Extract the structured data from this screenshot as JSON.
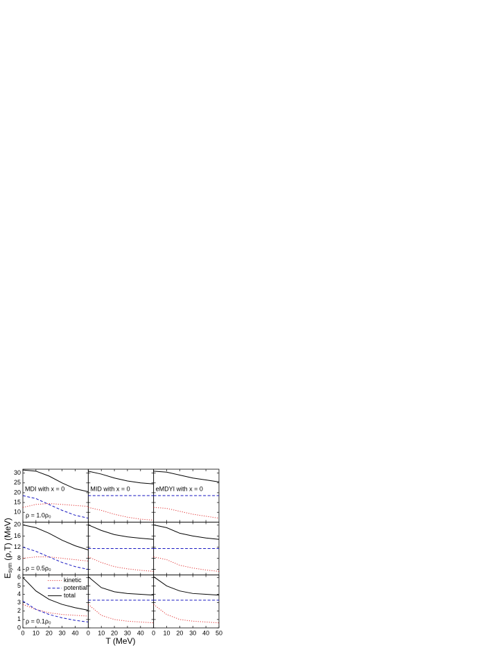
{
  "figure": {
    "xlabel": "T (MeV)",
    "ylabel": {
      "main": "E",
      "sub": "sym",
      "rest": " (ρ,T) (MeV)"
    }
  },
  "chart_data": [
    {
      "type": "line",
      "title": "MDI with x = 0",
      "annotation": "ρ = 1.0ρ₀",
      "x": [
        0,
        10,
        20,
        30,
        40,
        50
      ],
      "xlim": [
        0,
        50
      ],
      "xticks": [
        0,
        10,
        20,
        30,
        40
      ],
      "show_xtick_labels": false,
      "ylim": [
        5,
        32
      ],
      "yticks": [
        10,
        15,
        20,
        25,
        30
      ],
      "show_ytick_labels": true,
      "series": [
        {
          "name": "kinetic",
          "color": "#e03030",
          "style": "dotted",
          "values": [
            12.5,
            14,
            14.5,
            14,
            13.5,
            13
          ]
        },
        {
          "name": "potential",
          "color": "#1515c0",
          "style": "dashed",
          "values": [
            18.5,
            17,
            14,
            11,
            8.5,
            7
          ]
        },
        {
          "name": "total",
          "color": "#000000",
          "style": "solid",
          "values": [
            31.6,
            31,
            28.5,
            25,
            22,
            20.5
          ]
        }
      ]
    },
    {
      "type": "line",
      "title": "MID with x = 0",
      "x": [
        0,
        10,
        20,
        30,
        40,
        50
      ],
      "xlim": [
        0,
        50
      ],
      "xticks": [
        0,
        10,
        20,
        30,
        40
      ],
      "show_xtick_labels": false,
      "ylim": [
        5,
        32
      ],
      "yticks": [
        10,
        15,
        20,
        25,
        30
      ],
      "show_ytick_labels": false,
      "series": [
        {
          "name": "kinetic",
          "color": "#e03030",
          "style": "dotted",
          "values": [
            12.5,
            11,
            9,
            7.5,
            6.5,
            6
          ]
        },
        {
          "name": "potential",
          "color": "#1515c0",
          "style": "dashed",
          "values": [
            18.5,
            18.5,
            18.5,
            18.5,
            18.5,
            18.5
          ]
        },
        {
          "name": "total",
          "color": "#000000",
          "style": "solid",
          "values": [
            31,
            29.5,
            27.5,
            26,
            25,
            24.5
          ]
        }
      ]
    },
    {
      "type": "line",
      "title": "eMDYI with x = 0",
      "x": [
        0,
        10,
        20,
        30,
        40,
        50
      ],
      "xlim": [
        0,
        50
      ],
      "xticks": [
        0,
        10,
        20,
        30,
        40
      ],
      "show_xtick_labels": false,
      "ylim": [
        5,
        32
      ],
      "yticks": [
        10,
        15,
        20,
        25,
        30
      ],
      "show_ytick_labels": false,
      "series": [
        {
          "name": "kinetic",
          "color": "#e03030",
          "style": "dotted",
          "values": [
            12.5,
            12,
            10.5,
            9,
            8,
            7
          ]
        },
        {
          "name": "potential",
          "color": "#1515c0",
          "style": "dashed",
          "values": [
            18.5,
            18.5,
            18.5,
            18.5,
            18.5,
            18.5
          ]
        },
        {
          "name": "total",
          "color": "#000000",
          "style": "solid",
          "values": [
            31,
            30.5,
            29,
            27.5,
            26.5,
            25.5
          ]
        }
      ]
    },
    {
      "type": "line",
      "annotation": "ρ = 0.5ρ₀",
      "x": [
        0,
        10,
        20,
        30,
        40,
        50
      ],
      "xlim": [
        0,
        50
      ],
      "xticks": [
        0,
        10,
        20,
        30,
        40
      ],
      "show_xtick_labels": false,
      "ylim": [
        2,
        21
      ],
      "yticks": [
        4,
        8,
        12,
        16,
        20
      ],
      "show_ytick_labels": true,
      "series": [
        {
          "name": "kinetic",
          "color": "#e03030",
          "style": "dotted",
          "values": [
            8,
            8.5,
            8.5,
            8,
            7.5,
            7
          ]
        },
        {
          "name": "potential",
          "color": "#1515c0",
          "style": "dashed",
          "values": [
            12,
            10.5,
            8.5,
            6.5,
            5,
            4
          ]
        },
        {
          "name": "total",
          "color": "#000000",
          "style": "solid",
          "values": [
            20,
            19,
            17,
            14.5,
            12.5,
            11
          ]
        }
      ]
    },
    {
      "type": "line",
      "x": [
        0,
        10,
        20,
        30,
        40,
        50
      ],
      "xlim": [
        0,
        50
      ],
      "xticks": [
        0,
        10,
        20,
        30,
        40
      ],
      "show_xtick_labels": false,
      "ylim": [
        2,
        21
      ],
      "yticks": [
        4,
        8,
        12,
        16,
        20
      ],
      "show_ytick_labels": false,
      "series": [
        {
          "name": "kinetic",
          "color": "#e03030",
          "style": "dotted",
          "values": [
            8.5,
            6.5,
            5,
            4.2,
            3.7,
            3.3
          ]
        },
        {
          "name": "potential",
          "color": "#1515c0",
          "style": "dashed",
          "values": [
            11.5,
            11.5,
            11.5,
            11.5,
            11.5,
            11.5
          ]
        },
        {
          "name": "total",
          "color": "#000000",
          "style": "solid",
          "values": [
            20,
            18,
            16.5,
            15.7,
            15.2,
            14.8
          ]
        }
      ]
    },
    {
      "type": "line",
      "x": [
        0,
        10,
        20,
        30,
        40,
        50
      ],
      "xlim": [
        0,
        50
      ],
      "xticks": [
        0,
        10,
        20,
        30,
        40
      ],
      "show_xtick_labels": false,
      "ylim": [
        2,
        21
      ],
      "yticks": [
        4,
        8,
        12,
        16,
        20
      ],
      "show_ytick_labels": false,
      "series": [
        {
          "name": "kinetic",
          "color": "#e03030",
          "style": "dotted",
          "values": [
            8.5,
            7.5,
            5.5,
            4.5,
            3.8,
            3.3
          ]
        },
        {
          "name": "potential",
          "color": "#1515c0",
          "style": "dashed",
          "values": [
            11.5,
            11.5,
            11.5,
            11.5,
            11.5,
            11.5
          ]
        },
        {
          "name": "total",
          "color": "#000000",
          "style": "solid",
          "values": [
            20,
            19,
            17,
            16,
            15.3,
            14.8
          ]
        }
      ]
    },
    {
      "type": "line",
      "annotation": "ρ = 0.1ρ₀",
      "legend": "upper right",
      "x": [
        0,
        10,
        20,
        30,
        40,
        50
      ],
      "xlim": [
        0,
        50
      ],
      "xticks": [
        0,
        10,
        20,
        30,
        40
      ],
      "show_xtick_labels": true,
      "ylim": [
        0,
        6.3
      ],
      "yticks": [
        0,
        1,
        2,
        3,
        4,
        5,
        6
      ],
      "show_ytick_labels": true,
      "series": [
        {
          "name": "kinetic",
          "color": "#e03030",
          "style": "dotted",
          "values": [
            2.8,
            2.2,
            1.8,
            1.6,
            1.5,
            1.4
          ]
        },
        {
          "name": "potential",
          "color": "#1515c0",
          "style": "dashed",
          "values": [
            3.2,
            2.2,
            1.6,
            1.2,
            0.9,
            0.7
          ]
        },
        {
          "name": "total",
          "color": "#000000",
          "style": "solid",
          "values": [
            6,
            4.4,
            3.4,
            2.8,
            2.4,
            2.1
          ]
        }
      ]
    },
    {
      "type": "line",
      "x": [
        0,
        10,
        20,
        30,
        40,
        50
      ],
      "xlim": [
        0,
        50
      ],
      "xticks": [
        0,
        10,
        20,
        30,
        40
      ],
      "show_xtick_labels": true,
      "ylim": [
        0,
        6.3
      ],
      "yticks": [
        0,
        1,
        2,
        3,
        4,
        5,
        6
      ],
      "show_ytick_labels": false,
      "series": [
        {
          "name": "kinetic",
          "color": "#e03030",
          "style": "dotted",
          "values": [
            2.8,
            1.5,
            1,
            0.8,
            0.7,
            0.6
          ]
        },
        {
          "name": "potential",
          "color": "#1515c0",
          "style": "dashed",
          "values": [
            3.3,
            3.3,
            3.3,
            3.3,
            3.3,
            3.3
          ]
        },
        {
          "name": "total",
          "color": "#000000",
          "style": "solid",
          "values": [
            6.1,
            4.8,
            4.3,
            4.1,
            4,
            3.9
          ]
        }
      ]
    },
    {
      "type": "line",
      "x": [
        0,
        10,
        20,
        30,
        40,
        50
      ],
      "xlim": [
        0,
        50
      ],
      "xticks": [
        0,
        10,
        20,
        30,
        40,
        50
      ],
      "show_xtick_labels": true,
      "ylim": [
        0,
        6.3
      ],
      "yticks": [
        0,
        1,
        2,
        3,
        4,
        5,
        6
      ],
      "show_ytick_labels": false,
      "series": [
        {
          "name": "kinetic",
          "color": "#e03030",
          "style": "dotted",
          "values": [
            2.8,
            1.6,
            1,
            0.8,
            0.7,
            0.6
          ]
        },
        {
          "name": "potential",
          "color": "#1515c0",
          "style": "dashed",
          "values": [
            3.3,
            3.3,
            3.3,
            3.3,
            3.3,
            3.3
          ]
        },
        {
          "name": "total",
          "color": "#000000",
          "style": "solid",
          "values": [
            6.1,
            5,
            4.4,
            4.1,
            4,
            3.9
          ]
        }
      ]
    }
  ]
}
